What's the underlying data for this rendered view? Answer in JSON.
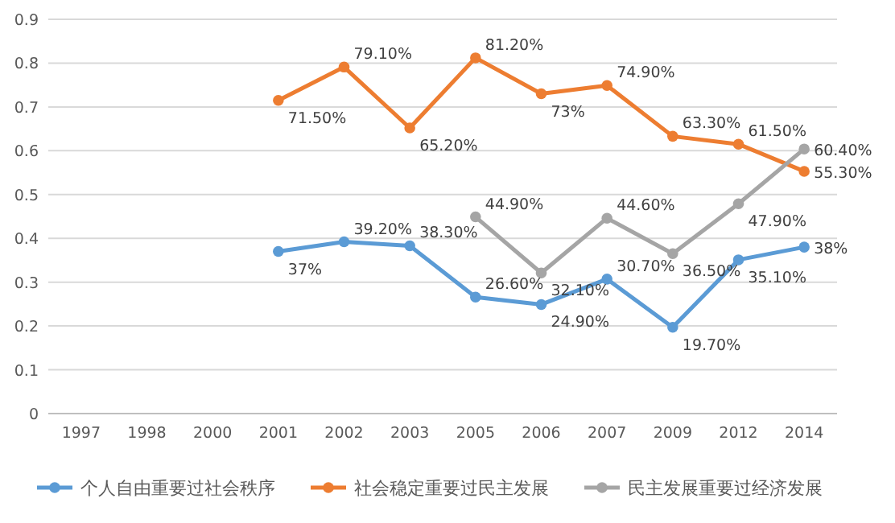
{
  "chart_data": {
    "type": "line",
    "categories": [
      "1997",
      "1998",
      "2000",
      "2001",
      "2002",
      "2003",
      "2005",
      "2006",
      "2007",
      "2009",
      "2012",
      "2014"
    ],
    "ylim": [
      0,
      0.9
    ],
    "yticks": [
      0,
      0.1,
      0.2,
      0.3,
      0.4,
      0.5,
      0.6,
      0.7,
      0.8,
      0.9
    ],
    "grid": "y",
    "legend": "bottom",
    "marker": "circle",
    "line_style": "solid",
    "series": [
      {
        "name": "个人自由重要过社会秩序",
        "color": "#5b9bd5",
        "values": [
          null,
          null,
          null,
          0.37,
          0.392,
          0.383,
          0.266,
          0.249,
          0.307,
          0.197,
          0.351,
          0.38
        ],
        "value_labels": [
          null,
          null,
          null,
          "37%",
          "39.20%",
          "38.30%",
          "26.60%",
          "24.90%",
          "30.70%",
          "19.70%",
          "35.10%",
          "38%"
        ]
      },
      {
        "name": "社会稳定重要过民主发展",
        "color": "#ed7d31",
        "values": [
          null,
          null,
          null,
          0.715,
          0.791,
          0.652,
          0.812,
          0.73,
          0.749,
          0.633,
          0.615,
          0.553
        ],
        "value_labels": [
          null,
          null,
          null,
          "71.50%",
          "79.10%",
          "65.20%",
          "81.20%",
          "73%",
          "74.90%",
          "63.30%",
          "61.50%",
          "55.30%"
        ]
      },
      {
        "name": "民主发展重要过经济发展",
        "color": "#a5a5a5",
        "values": [
          null,
          null,
          null,
          null,
          null,
          null,
          0.449,
          0.321,
          0.446,
          0.365,
          0.479,
          0.604
        ],
        "value_labels": [
          null,
          null,
          null,
          null,
          null,
          null,
          "44.90%",
          "32.10%",
          "44.60%",
          "36.50%",
          "47.90%",
          "60.40%"
        ]
      }
    ]
  }
}
